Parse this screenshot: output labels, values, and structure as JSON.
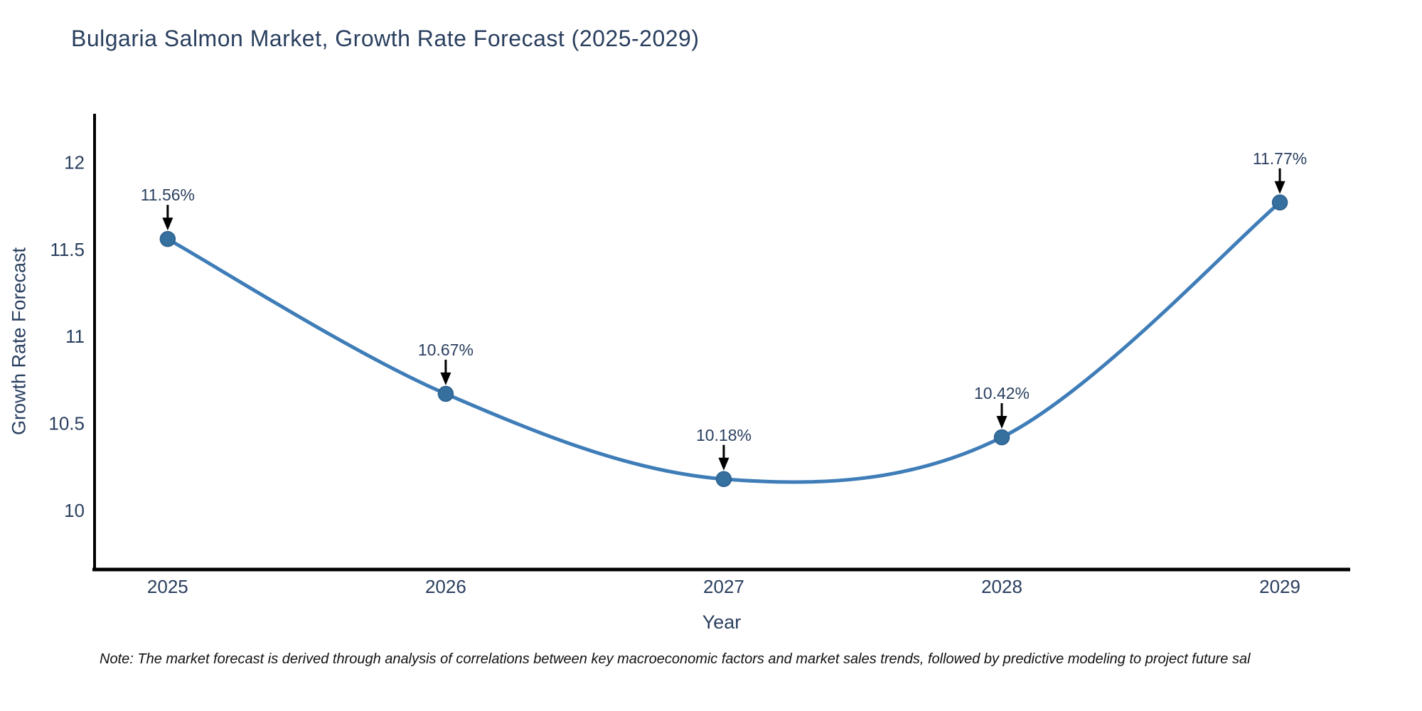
{
  "header": {
    "title": "Bulgaria Salmon Market, Growth Rate Forecast (2025-2029)"
  },
  "chart_data": {
    "type": "line",
    "title": "Bulgaria Salmon Market, Growth Rate Forecast (2025-2029)",
    "categories": [
      2025,
      2026,
      2027,
      2028,
      2029
    ],
    "values": [
      11.56,
      10.67,
      10.18,
      10.42,
      11.77
    ],
    "point_labels": [
      "11.56%",
      "10.67%",
      "10.18%",
      "10.42%",
      "11.77%"
    ],
    "xlabel": "Year",
    "ylabel": "Growth Rate Forecast",
    "xtick_labels": [
      "2025",
      "2026",
      "2027",
      "2028",
      "2029"
    ],
    "yticks": [
      10,
      10.5,
      11,
      11.5,
      12
    ],
    "ytick_labels": [
      "10",
      "10.5",
      "11",
      "11.5",
      "12"
    ],
    "xlim": [
      2024.737,
      2029.253
    ],
    "ylim": [
      9.66,
      12.28
    ],
    "grid": false,
    "legend": "none",
    "line_shape": "spline",
    "line_color": "#3f7db8",
    "marker_color": "#35709f",
    "marker_edge_color": "#2d5f8e",
    "annotation_color": "#2a3f5f",
    "annotation_arrow_color": "#000000",
    "axis_line_color": "#000000",
    "tick_label_color": "#2a3f5f"
  },
  "footnote": {
    "text": "Note: The market forecast is derived through analysis of correlations between key macroeconomic factors and market sales trends, followed by predictive modeling to project future sal"
  }
}
